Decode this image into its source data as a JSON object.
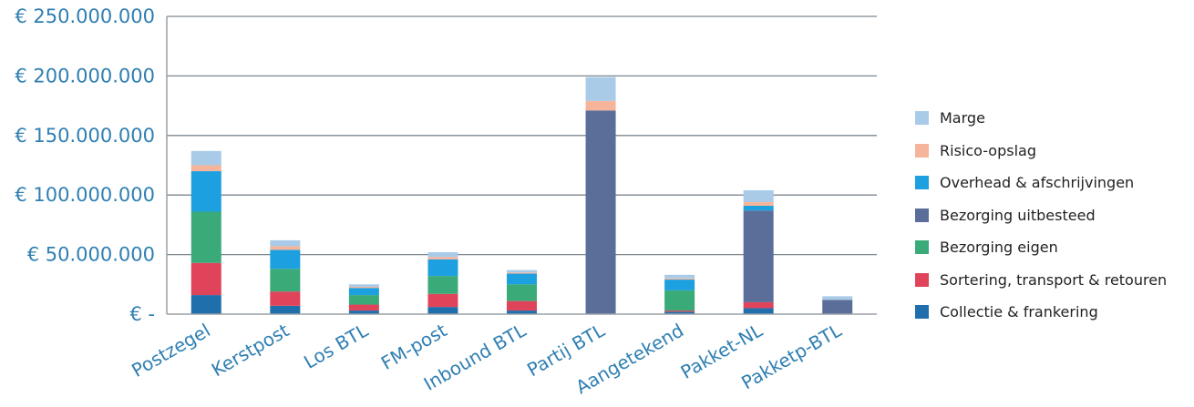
{
  "chart_data": {
    "type": "bar",
    "stacked": true,
    "categories": [
      "Postzegel",
      "Kerstpost",
      "Los BTL",
      "FM-post",
      "Inbound BTL",
      "Partij BTL",
      "Aangetekend",
      "Pakket-NL",
      "Pakketp-BTL"
    ],
    "y_ticks": [
      "€ -",
      "€ 50.000.000",
      "€ 100.000.000",
      "€ 150.000.000",
      "€ 200.000.000",
      "€ 250.000.000"
    ],
    "ylim": [
      0,
      250000000
    ],
    "grid": true,
    "legend_position": "right",
    "series": [
      {
        "name": "Collectie & frankering",
        "color": "#1f6fad",
        "values": [
          16000000,
          7000000,
          3000000,
          6000000,
          3000000,
          0,
          2000000,
          5000000,
          0
        ]
      },
      {
        "name": "Sortering, transport & retouren",
        "color": "#e0445a",
        "values": [
          27000000,
          12000000,
          5000000,
          11000000,
          8000000,
          0,
          1000000,
          5000000,
          0
        ]
      },
      {
        "name": "Bezorging eigen",
        "color": "#3aaa78",
        "values": [
          43000000,
          19000000,
          8000000,
          15000000,
          14000000,
          0,
          17000000,
          0,
          0
        ]
      },
      {
        "name": "Bezorging uitbesteed",
        "color": "#5b6e9a",
        "values": [
          0,
          0,
          0,
          0,
          0,
          171000000,
          0,
          77000000,
          12000000
        ]
      },
      {
        "name": "Overhead & afschrijvingen",
        "color": "#1da0e0",
        "values": [
          34000000,
          16000000,
          6000000,
          14000000,
          9000000,
          0,
          9000000,
          4000000,
          0
        ]
      },
      {
        "name": "Risico-opslag",
        "color": "#f6b49a",
        "values": [
          5000000,
          3000000,
          1000000,
          2000000,
          1000000,
          8000000,
          1000000,
          3000000,
          0
        ]
      },
      {
        "name": "Marge",
        "color": "#a9cbe8",
        "values": [
          12000000,
          5000000,
          2000000,
          4000000,
          2000000,
          20000000,
          3000000,
          10000000,
          3000000
        ]
      }
    ],
    "legend_order": [
      "Marge",
      "Risico-opslag",
      "Overhead & afschrijvingen",
      "Bezorging uitbesteed",
      "Bezorging eigen",
      "Sortering, transport & retouren",
      "Collectie & frankering"
    ]
  }
}
